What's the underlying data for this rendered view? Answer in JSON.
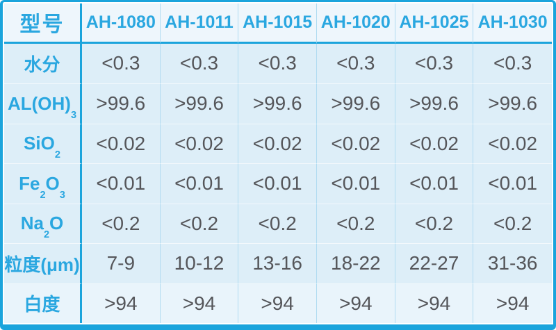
{
  "colors": {
    "accent": "#1ba4dc",
    "header_text": "#2aa7e0",
    "label_text": "#2aa7e0",
    "value_text": "#55565a",
    "cell_bg": "#ddeef8",
    "header_bg": "#eef6fc",
    "col_divider": "#b0dbf1",
    "row_divider": "#f2f8fc"
  },
  "table": {
    "corner_label": "型号",
    "columns": [
      "AH-1080",
      "AH-1011",
      "AH-1015",
      "AH-1020",
      "AH-1025",
      "AH-1030"
    ],
    "rows": [
      {
        "label_parts": [
          [
            "水分",
            false
          ]
        ],
        "values": [
          "<0.3",
          "<0.3",
          "<0.3",
          "<0.3",
          "<0.3",
          "<0.3"
        ]
      },
      {
        "label_parts": [
          [
            "AL(OH)",
            false
          ],
          [
            "3",
            true
          ]
        ],
        "values": [
          ">99.6",
          ">99.6",
          ">99.6",
          ">99.6",
          ">99.6",
          ">99.6"
        ]
      },
      {
        "label_parts": [
          [
            "SiO",
            false
          ],
          [
            "2",
            true
          ]
        ],
        "values": [
          "<0.02",
          "<0.02",
          "<0.02",
          "<0.02",
          "<0.02",
          "<0.02"
        ]
      },
      {
        "label_parts": [
          [
            "Fe",
            false
          ],
          [
            "2",
            true
          ],
          [
            "O",
            false
          ],
          [
            "3",
            true
          ]
        ],
        "values": [
          "<0.01",
          "<0.01",
          "<0.01",
          "<0.01",
          "<0.01",
          "<0.01"
        ]
      },
      {
        "label_parts": [
          [
            "Na",
            false
          ],
          [
            "2",
            true
          ],
          [
            "O",
            false
          ]
        ],
        "values": [
          "<0.2",
          "<0.2",
          "<0.2",
          "<0.2",
          "<0.2",
          "<0.2"
        ]
      },
      {
        "label_parts": [
          [
            "粒度(μm)",
            false
          ]
        ],
        "values": [
          "7-9",
          "10-12",
          "13-16",
          "18-22",
          "22-27",
          "31-36"
        ]
      },
      {
        "label_parts": [
          [
            "白度",
            false
          ]
        ],
        "values": [
          ">94",
          ">94",
          ">94",
          ">94",
          ">94",
          ">94"
        ]
      }
    ]
  },
  "chart_data": {
    "type": "table",
    "title": "",
    "columns": [
      "型号",
      "AH-1080",
      "AH-1011",
      "AH-1015",
      "AH-1020",
      "AH-1025",
      "AH-1030"
    ],
    "rows": [
      [
        "水分",
        "<0.3",
        "<0.3",
        "<0.3",
        "<0.3",
        "<0.3",
        "<0.3"
      ],
      [
        "AL(OH)3",
        ">99.6",
        ">99.6",
        ">99.6",
        ">99.6",
        ">99.6",
        ">99.6"
      ],
      [
        "SiO2",
        "<0.02",
        "<0.02",
        "<0.02",
        "<0.02",
        "<0.02",
        "<0.02"
      ],
      [
        "Fe2O3",
        "<0.01",
        "<0.01",
        "<0.01",
        "<0.01",
        "<0.01",
        "<0.01"
      ],
      [
        "Na2O",
        "<0.2",
        "<0.2",
        "<0.2",
        "<0.2",
        "<0.2",
        "<0.2"
      ],
      [
        "粒度(μm)",
        "7-9",
        "10-12",
        "13-16",
        "18-22",
        "22-27",
        "31-36"
      ],
      [
        "白度",
        ">94",
        ">94",
        ">94",
        ">94",
        ">94",
        ">94"
      ]
    ]
  }
}
